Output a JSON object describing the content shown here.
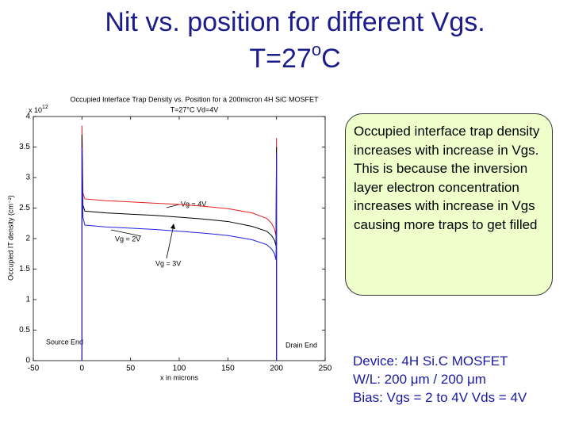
{
  "slide_title": {
    "line1": "Nit vs. position for different Vgs.",
    "line2_main": "T=27",
    "line2_sup": "o",
    "line2_end": "C"
  },
  "note": "Occupied interface trap density increases with increase in Vgs. This is because the inversion layer electron concentration increases with increase in Vgs causing more traps to get filled",
  "device_info": [
    "Device: 4H Si.C MOSFET",
    "W/L: 200 μm / 200 μm",
    "Bias: Vgs = 2 to 4V Vds = 4V"
  ],
  "chart_data": {
    "type": "line",
    "title": "Occupied Interface Trap Density vs. Position for a 200micron 4H SiC MOSFET",
    "subtitle": "T=27°C Vd=4V",
    "y_multiplier": {
      "base": "x 10",
      "exponent": "12"
    },
    "ylabel": "Occupied IT density (cm⁻²)",
    "xlabel": "x in microns",
    "xlim": [
      -50,
      250
    ],
    "xticks": [
      -50,
      0,
      50,
      100,
      150,
      200,
      250
    ],
    "ylim": [
      0,
      4
    ],
    "yticks": [
      0,
      0.5,
      1,
      1.5,
      2,
      2.5,
      3,
      3.5,
      4
    ],
    "grid": false,
    "x": [
      0,
      0,
      1,
      3,
      25,
      50,
      75,
      100,
      125,
      150,
      175,
      190,
      195,
      198,
      199.5,
      200,
      200
    ],
    "series": [
      {
        "name": "Vg = 4V",
        "color": "#e02020",
        "values": [
          0,
          3.85,
          2.75,
          2.65,
          2.62,
          2.6,
          2.58,
          2.56,
          2.53,
          2.49,
          2.42,
          2.33,
          2.25,
          2.15,
          2.05,
          3.65,
          0
        ]
      },
      {
        "name": "Vg = 3V",
        "color": "#000000",
        "values": [
          0,
          3.7,
          2.55,
          2.45,
          2.42,
          2.4,
          2.38,
          2.35,
          2.32,
          2.28,
          2.2,
          2.12,
          2.05,
          1.97,
          1.88,
          3.5,
          0
        ]
      },
      {
        "name": "Vg = 2V",
        "color": "#2020e0",
        "values": [
          0,
          3.5,
          2.35,
          2.22,
          2.19,
          2.17,
          2.15,
          2.12,
          2.09,
          2.05,
          1.98,
          1.9,
          1.83,
          1.75,
          1.65,
          3.4,
          0
        ]
      }
    ],
    "annotations": [
      "Source End",
      "Drain End"
    ]
  }
}
